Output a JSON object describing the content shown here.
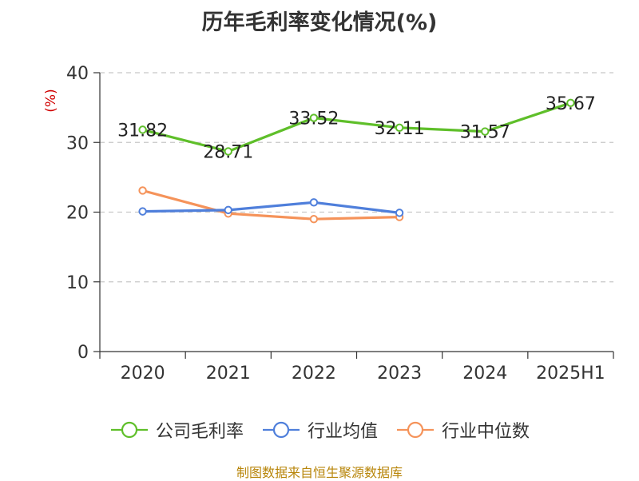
{
  "title": "历年毛利率变化情况(%)",
  "source": "制图数据来自恒生聚源数据库",
  "chart_data": {
    "type": "line",
    "title": "历年毛利率变化情况(%)",
    "ylabel": "(%)",
    "xlabel": "",
    "categories": [
      "2020",
      "2021",
      "2022",
      "2023",
      "2024",
      "2025H1"
    ],
    "ylim": [
      0,
      40
    ],
    "yticks": [
      0,
      10,
      20,
      30,
      40
    ],
    "grid": "horizontal-dashed",
    "legend_position": "bottom",
    "series": [
      {
        "name": "公司毛利率",
        "color": "#5fbf2a",
        "values": [
          31.82,
          28.71,
          33.52,
          32.11,
          31.57,
          35.67
        ],
        "labels": [
          "31.82",
          "28.71",
          "33.52",
          "32.11",
          "31.57",
          "35.67"
        ]
      },
      {
        "name": "行业均值",
        "color": "#4f7fdb",
        "values": [
          20.1,
          20.3,
          21.4,
          19.9,
          null,
          null
        ]
      },
      {
        "name": "行业中位数",
        "color": "#f5935a",
        "values": [
          23.1,
          19.8,
          19.0,
          19.3,
          null,
          null
        ]
      }
    ]
  }
}
